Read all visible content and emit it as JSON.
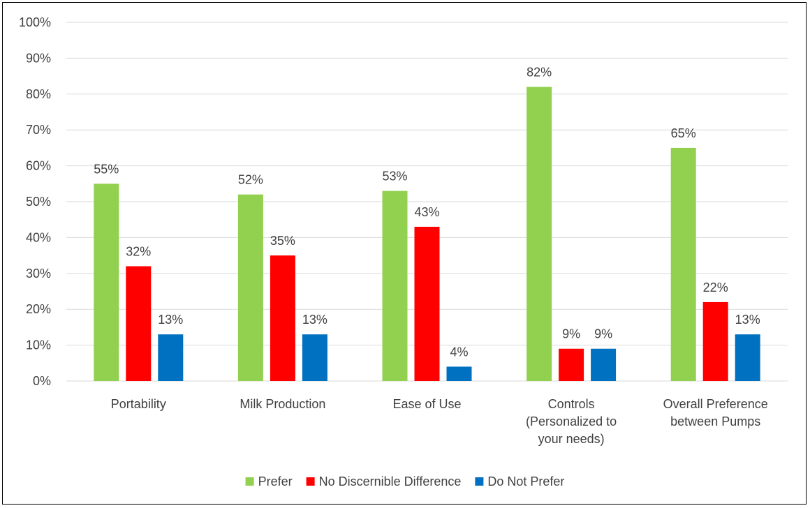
{
  "chart_data": {
    "type": "bar",
    "categories": [
      [
        "Portability"
      ],
      [
        "Milk Production"
      ],
      [
        "Ease of Use"
      ],
      [
        "Controls",
        "(Personalized to",
        "your needs)"
      ],
      [
        "Overall Preference",
        "between Pumps"
      ]
    ],
    "series": [
      {
        "name": "Prefer",
        "color": "#92d050",
        "values": [
          55,
          52,
          53,
          82,
          65
        ]
      },
      {
        "name": "No Discernible Difference",
        "color": "#ff0000",
        "values": [
          32,
          35,
          43,
          9,
          22
        ]
      },
      {
        "name": "Do Not Prefer",
        "color": "#0070c0",
        "values": [
          13,
          13,
          4,
          9,
          13
        ]
      }
    ],
    "ylim": [
      0,
      100
    ],
    "yticks": [
      0,
      10,
      20,
      30,
      40,
      50,
      60,
      70,
      80,
      90,
      100
    ],
    "value_suffix": "%",
    "grid": true,
    "legend_position": "bottom",
    "gridline_color": "#d9d9d9"
  }
}
